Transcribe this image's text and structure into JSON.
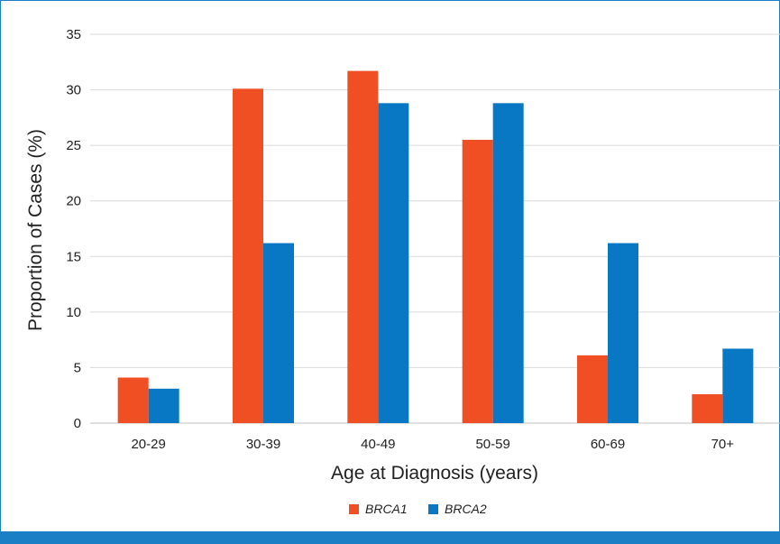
{
  "chart_data": {
    "type": "bar",
    "categories": [
      "20-29",
      "30-39",
      "40-49",
      "50-59",
      "60-69",
      "70+"
    ],
    "series": [
      {
        "name": "BRCA1",
        "values": [
          4.1,
          30.1,
          31.7,
          25.5,
          6.1,
          2.6
        ],
        "color": "#f04e23"
      },
      {
        "name": "BRCA2",
        "values": [
          3.1,
          16.2,
          28.8,
          28.8,
          16.2,
          6.7
        ],
        "color": "#0878c4"
      }
    ],
    "title": "",
    "xlabel": "Age at Diagnosis (years)",
    "ylabel": "Proportion of Cases (%)",
    "ylim": [
      0,
      35
    ],
    "yticks": [
      0,
      5,
      10,
      15,
      20,
      25,
      30,
      35
    ],
    "grid": true,
    "legend": "bottom-center"
  },
  "colors": {
    "frame": "#1a7fc4",
    "grid": "#d9d9d9",
    "axis": "#bfbfbf"
  }
}
